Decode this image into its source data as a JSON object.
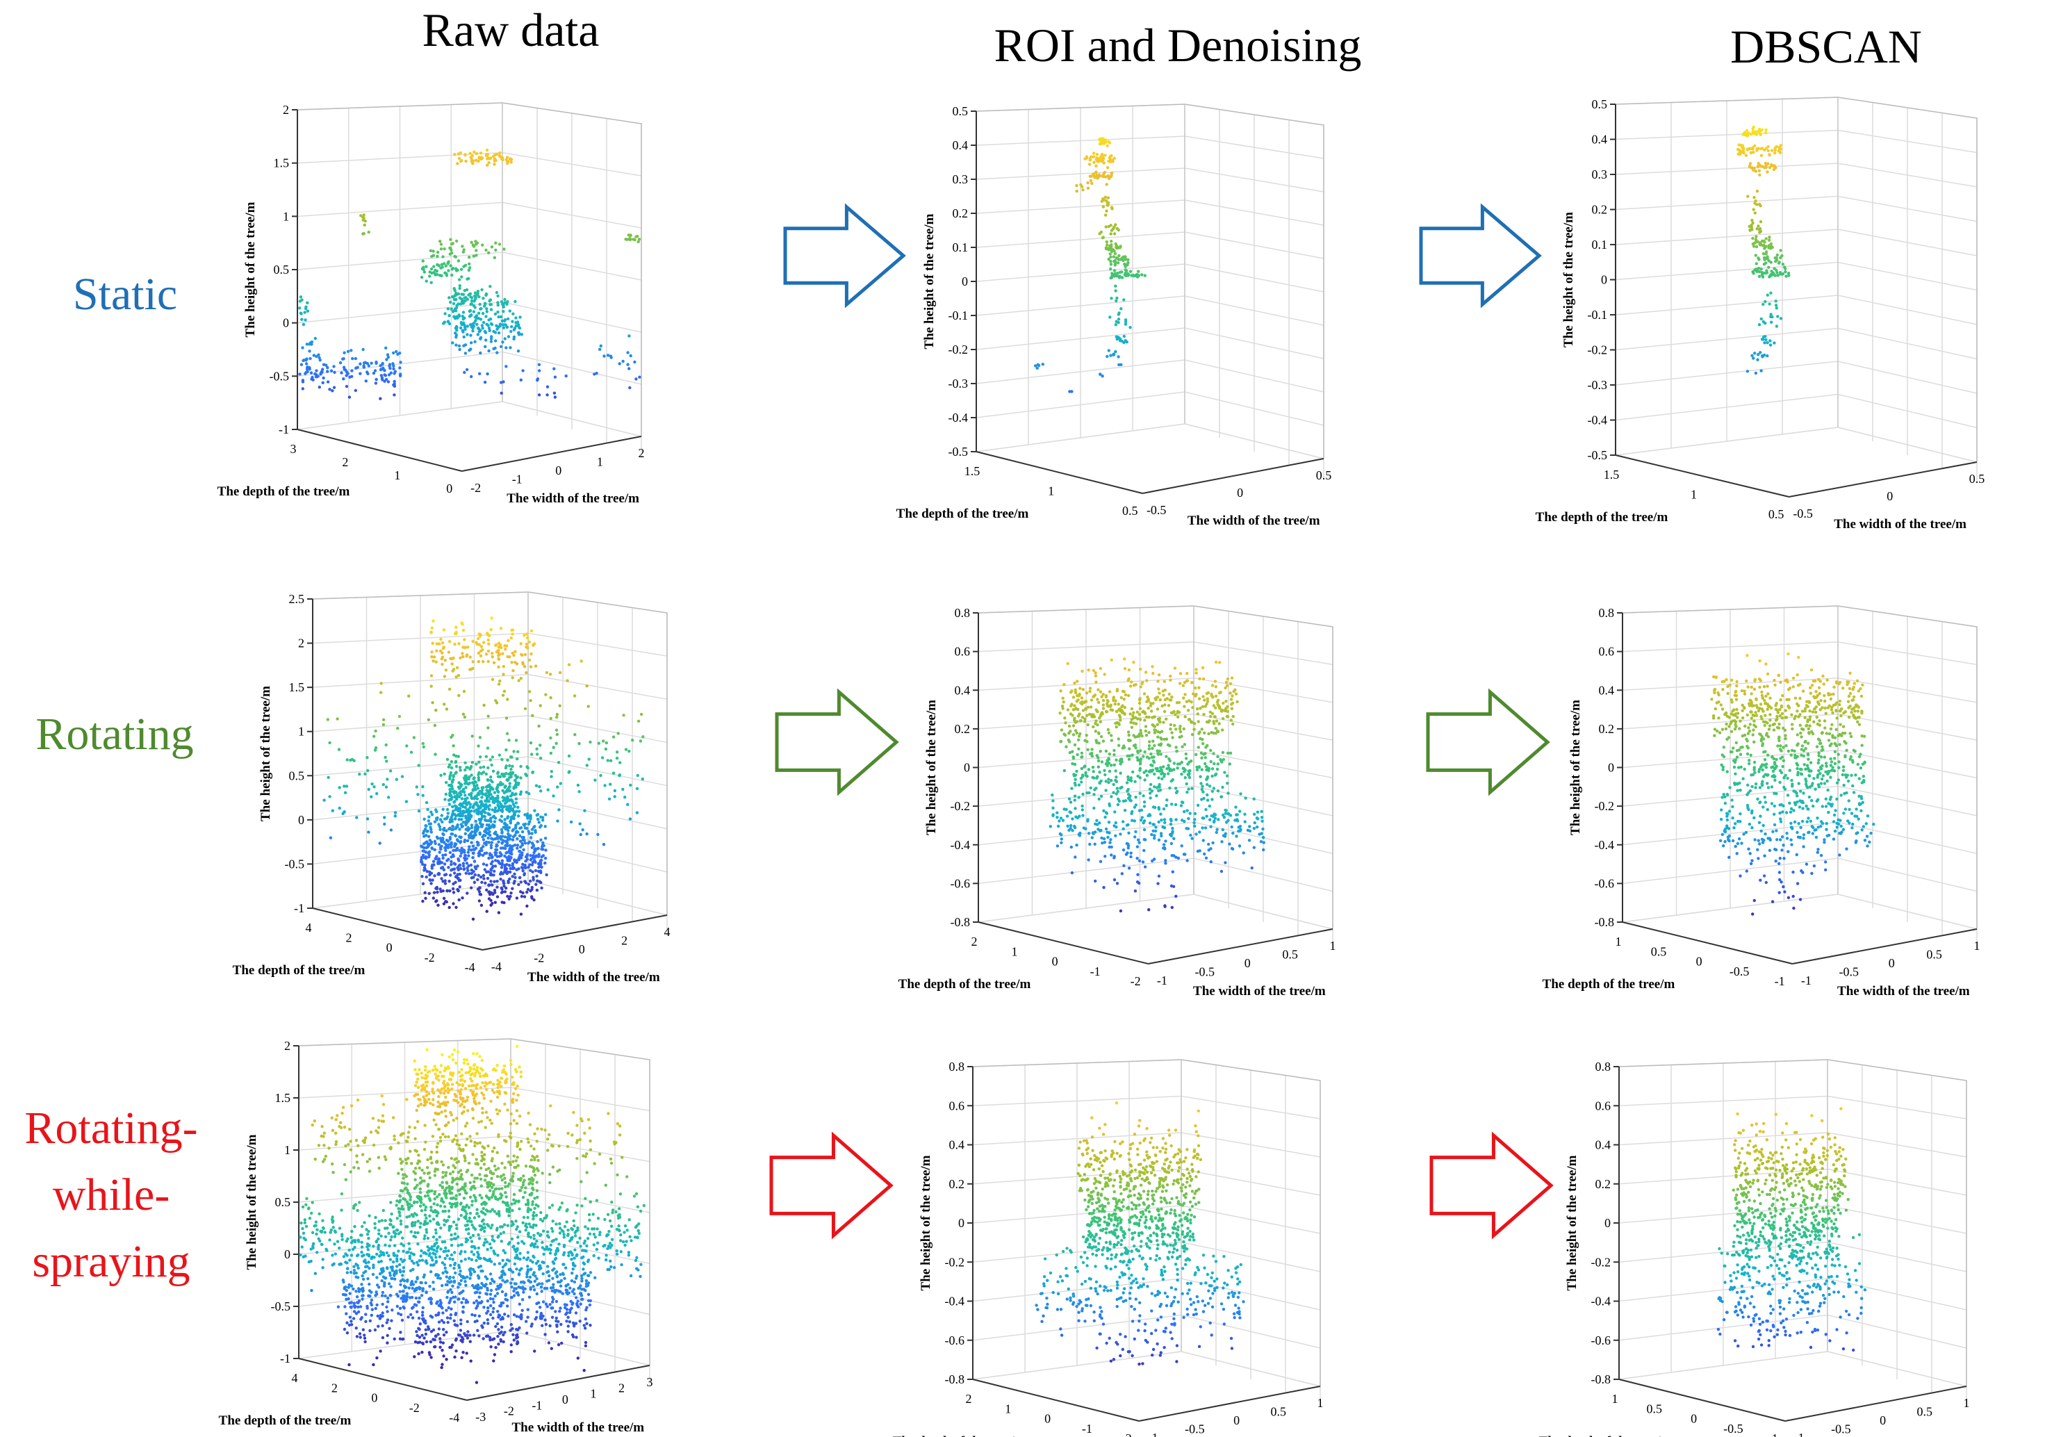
{
  "figure": {
    "column_titles": [
      "Raw data",
      "ROI and Denoising",
      "DBSCAN"
    ],
    "row_labels": [
      {
        "lines": [
          "Static"
        ],
        "color": "#1f6fb5"
      },
      {
        "lines": [
          "Rotating"
        ],
        "color": "#4f8a2e"
      },
      {
        "lines": [
          "Rotating-",
          "while-",
          "spraying"
        ],
        "color": "#e8141a"
      }
    ],
    "arrow_colors": [
      "#1f6fb5",
      "#4f8a2e",
      "#e8141a"
    ],
    "colormap": [
      "#3e26a8",
      "#2f6efa",
      "#13b3cb",
      "#35c37c",
      "#a9c02b",
      "#f4c02e",
      "#f9fb15"
    ]
  },
  "chart_data": [
    {
      "type": "scatter3d",
      "name": "static-raw",
      "row": 0,
      "col": 0,
      "zlabel": "The height of the tree/m",
      "xlabel": "The depth of the tree/m",
      "ylabel": "The width of the tree/m",
      "zlim": [
        -1,
        2
      ],
      "zticks": [
        "2",
        "1.5",
        "1",
        "0.5",
        "0",
        "-0.5",
        "-1"
      ],
      "depth_ticks": [
        "3",
        "2",
        "1",
        "0"
      ],
      "width_ticks": [
        "-2",
        "-1",
        "0",
        "1",
        "2"
      ],
      "point_groups": [
        {
          "z": 1.55,
          "zs": 0.03,
          "h": [
            -0.05,
            0.3
          ],
          "n": 60
        },
        {
          "z": 0.95,
          "zs": 0.05,
          "h": [
            -0.6,
            -0.55
          ],
          "n": 10
        },
        {
          "z": 0.8,
          "zs": 0.03,
          "h": [
            0.95,
            1.35
          ],
          "n": 60
        },
        {
          "z": 0.7,
          "zs": 0.05,
          "h": [
            -0.2,
            0.25
          ],
          "n": 40
        },
        {
          "z": 0.5,
          "zs": 0.05,
          "h": [
            -0.25,
            0.05
          ],
          "n": 60
        },
        {
          "z": 0.25,
          "zs": 0.05,
          "h": [
            -0.05,
            0.1
          ],
          "n": 40
        },
        {
          "z": 0.1,
          "zs": 0.12,
          "h": [
            -0.1,
            0.3
          ],
          "n": 120
        },
        {
          "z": -0.1,
          "zs": 0.1,
          "h": [
            -0.05,
            0.35
          ],
          "n": 90
        },
        {
          "z": 0.1,
          "zs": 0.08,
          "h": [
            -0.98,
            -0.9
          ],
          "n": 20
        },
        {
          "z": -0.3,
          "zs": 0.06,
          "h": [
            -0.92,
            -0.85
          ],
          "n": 10
        },
        {
          "z": -0.45,
          "zs": 0.1,
          "h": [
            -0.95,
            -0.35
          ],
          "n": 140
        },
        {
          "z": -0.55,
          "zs": 0.12,
          "h": [
            0.0,
            0.65
          ],
          "n": 25
        },
        {
          "z": 0.1,
          "zs": 0.06,
          "h": [
            1.05,
            1.4
          ],
          "n": 35
        },
        {
          "z": -0.35,
          "zs": 0.12,
          "h": [
            0.7,
            1.05
          ],
          "n": 20
        },
        {
          "z": 0.75,
          "zs": 0.04,
          "h": [
            1.35,
            1.55
          ],
          "n": 12
        }
      ]
    },
    {
      "type": "scatter3d",
      "name": "static-roi",
      "row": 0,
      "col": 1,
      "zlabel": "The height of the tree/m",
      "xlabel": "The depth of the tree/m",
      "ylabel": "The width of the tree/m",
      "zlim": [
        -0.5,
        0.5
      ],
      "zticks": [
        "0.5",
        "0.4",
        "0.3",
        "0.2",
        "0.1",
        "0",
        "-0.1",
        "-0.2",
        "-0.3",
        "-0.4",
        "-0.5"
      ],
      "depth_ticks": [
        "1.5",
        "1",
        "0.5"
      ],
      "width_ticks": [
        "-0.5",
        "0",
        "0.5"
      ],
      "point_groups": [
        {
          "z": 0.41,
          "zs": 0.006,
          "h": [
            -0.26,
            -0.2
          ],
          "n": 25
        },
        {
          "z": 0.36,
          "zs": 0.008,
          "h": [
            -0.33,
            -0.16
          ],
          "n": 45
        },
        {
          "z": 0.31,
          "zs": 0.008,
          "h": [
            -0.3,
            -0.18
          ],
          "n": 30
        },
        {
          "z": 0.28,
          "zs": 0.01,
          "h": [
            -0.4,
            -0.3
          ],
          "n": 8
        },
        {
          "z": 0.22,
          "zs": 0.015,
          "h": [
            -0.24,
            -0.18
          ],
          "n": 15
        },
        {
          "z": 0.15,
          "zs": 0.01,
          "h": [
            -0.25,
            -0.15
          ],
          "n": 15
        },
        {
          "z": 0.1,
          "zs": 0.01,
          "h": [
            -0.22,
            -0.12
          ],
          "n": 30
        },
        {
          "z": 0.06,
          "zs": 0.01,
          "h": [
            -0.2,
            -0.08
          ],
          "n": 30
        },
        {
          "z": 0.02,
          "zs": 0.006,
          "h": [
            -0.2,
            0.0
          ],
          "n": 40
        },
        {
          "z": -0.05,
          "zs": 0.02,
          "h": [
            -0.18,
            -0.12
          ],
          "n": 8
        },
        {
          "z": -0.11,
          "zs": 0.01,
          "h": [
            -0.18,
            -0.06
          ],
          "n": 10
        },
        {
          "z": -0.17,
          "zs": 0.01,
          "h": [
            -0.16,
            -0.1
          ],
          "n": 10
        },
        {
          "z": -0.22,
          "zs": 0.01,
          "h": [
            -0.2,
            -0.12
          ],
          "n": 10
        },
        {
          "z": -0.25,
          "zs": 0.005,
          "h": [
            -0.62,
            -0.58
          ],
          "n": 5
        },
        {
          "z": -0.32,
          "zs": 0.005,
          "h": [
            -0.42,
            -0.4
          ],
          "n": 2
        },
        {
          "z": -0.27,
          "zs": 0.005,
          "h": [
            -0.26,
            -0.22
          ],
          "n": 3
        }
      ]
    },
    {
      "type": "scatter3d",
      "name": "static-dbscan",
      "row": 0,
      "col": 2,
      "zlabel": "The height of the tree/m",
      "xlabel": "The depth of the tree/m",
      "ylabel": "The width of the tree/m",
      "zlim": [
        -0.5,
        0.5
      ],
      "zticks": [
        "0.5",
        "0.4",
        "0.3",
        "0.2",
        "0.1",
        "0",
        "-0.1",
        "-0.2",
        "-0.3",
        "-0.4",
        "-0.5"
      ],
      "depth_ticks": [
        "1.5",
        "1",
        "0.5"
      ],
      "width_ticks": [
        "-0.5",
        "0",
        "0.5"
      ],
      "point_groups": [
        {
          "z": 0.42,
          "zs": 0.006,
          "h": [
            -0.26,
            -0.12
          ],
          "n": 30
        },
        {
          "z": 0.37,
          "zs": 0.008,
          "h": [
            -0.28,
            -0.05
          ],
          "n": 50
        },
        {
          "z": 0.32,
          "zs": 0.008,
          "h": [
            -0.22,
            -0.08
          ],
          "n": 30
        },
        {
          "z": 0.22,
          "zs": 0.02,
          "h": [
            -0.23,
            -0.16
          ],
          "n": 10
        },
        {
          "z": 0.15,
          "zs": 0.01,
          "h": [
            -0.22,
            -0.13
          ],
          "n": 15
        },
        {
          "z": 0.1,
          "zs": 0.01,
          "h": [
            -0.2,
            -0.08
          ],
          "n": 30
        },
        {
          "z": 0.06,
          "zs": 0.01,
          "h": [
            -0.18,
            -0.04
          ],
          "n": 30
        },
        {
          "z": 0.02,
          "zs": 0.006,
          "h": [
            -0.2,
            0.0
          ],
          "n": 40
        },
        {
          "z": -0.07,
          "zs": 0.02,
          "h": [
            -0.14,
            -0.04
          ],
          "n": 10
        },
        {
          "z": -0.12,
          "zs": 0.01,
          "h": [
            -0.16,
            -0.04
          ],
          "n": 10
        },
        {
          "z": -0.17,
          "zs": 0.01,
          "h": [
            -0.16,
            -0.08
          ],
          "n": 10
        },
        {
          "z": -0.22,
          "zs": 0.01,
          "h": [
            -0.2,
            -0.12
          ],
          "n": 10
        },
        {
          "z": -0.26,
          "zs": 0.005,
          "h": [
            -0.24,
            -0.14
          ],
          "n": 3
        }
      ]
    },
    {
      "type": "scatter3d",
      "name": "rotating-raw",
      "row": 1,
      "col": 0,
      "zlabel": "The height of the tree/m",
      "xlabel": "The depth of the tree/m",
      "ylabel": "The width of the tree/m",
      "zlim": [
        -1,
        2.5
      ],
      "zticks": [
        "2.5",
        "2",
        "1.5",
        "1",
        "0.5",
        "0",
        "-0.5",
        "-1"
      ],
      "depth_ticks": [
        "4",
        "2",
        "0",
        "-2",
        "-4"
      ],
      "width_ticks": [
        "-4",
        "-2",
        "0",
        "2",
        "4"
      ],
      "point_groups": [
        {
          "z": 1.9,
          "zs": 0.15,
          "h": [
            -0.3,
            0.3
          ],
          "n": 150
        },
        {
          "z": 1.3,
          "zs": 0.3,
          "h": [
            -0.6,
            0.6
          ],
          "n": 60
        },
        {
          "z": 0.5,
          "zs": 0.35,
          "h": [
            -0.9,
            0.9
          ],
          "n": 200
        },
        {
          "z": 0.2,
          "zs": 0.25,
          "h": [
            -0.2,
            0.2
          ],
          "n": 500
        },
        {
          "z": -0.35,
          "zs": 0.25,
          "h": [
            -0.35,
            0.35
          ],
          "n": 700
        },
        {
          "z": -0.75,
          "zs": 0.12,
          "h": [
            -0.3,
            0.3
          ],
          "n": 80
        }
      ]
    },
    {
      "type": "scatter3d",
      "name": "rotating-roi",
      "row": 1,
      "col": 1,
      "zlabel": "The height of the tree/m",
      "xlabel": "The depth of the tree/m",
      "ylabel": "The width of the tree/m",
      "zlim": [
        -0.8,
        0.8
      ],
      "zticks": [
        "0.8",
        "0.6",
        "0.4",
        "0.2",
        "0",
        "-0.2",
        "-0.4",
        "-0.6",
        "-0.8"
      ],
      "depth_ticks": [
        "2",
        "1",
        "0",
        "-1",
        "-2"
      ],
      "width_ticks": [
        "-1",
        "-0.5",
        "0",
        "0.5",
        "1"
      ],
      "point_groups": [
        {
          "z": 0.3,
          "zs": 0.1,
          "h": [
            -0.5,
            0.5
          ],
          "n": 450
        },
        {
          "z": 0.0,
          "zs": 0.1,
          "h": [
            -0.45,
            0.45
          ],
          "n": 350
        },
        {
          "z": -0.3,
          "zs": 0.1,
          "h": [
            -0.55,
            0.65
          ],
          "n": 300
        },
        {
          "z": -0.55,
          "zs": 0.1,
          "h": [
            -0.3,
            0.2
          ],
          "n": 40
        }
      ]
    },
    {
      "type": "scatter3d",
      "name": "rotating-dbscan",
      "row": 1,
      "col": 2,
      "zlabel": "The height of the tree/m",
      "xlabel": "The depth of the tree/m",
      "ylabel": "The width of the tree/m",
      "zlim": [
        -0.8,
        0.8
      ],
      "zticks": [
        "0.8",
        "0.6",
        "0.4",
        "0.2",
        "0",
        "-0.2",
        "-0.4",
        "-0.6",
        "-0.8"
      ],
      "depth_ticks": [
        "1",
        "0.5",
        "0",
        "-0.5",
        "-1"
      ],
      "width_ticks": [
        "-1",
        "-0.5",
        "0",
        "0.5",
        "1"
      ],
      "point_groups": [
        {
          "z": 0.3,
          "zs": 0.1,
          "h": [
            -0.45,
            0.4
          ],
          "n": 400
        },
        {
          "z": 0.0,
          "zs": 0.1,
          "h": [
            -0.4,
            0.4
          ],
          "n": 300
        },
        {
          "z": -0.3,
          "zs": 0.1,
          "h": [
            -0.4,
            0.45
          ],
          "n": 220
        },
        {
          "z": -0.55,
          "zs": 0.08,
          "h": [
            -0.25,
            0.15
          ],
          "n": 25
        }
      ]
    },
    {
      "type": "scatter3d",
      "name": "spraying-raw",
      "row": 2,
      "col": 0,
      "zlabel": "The height of the tree/m",
      "xlabel": "The depth of the tree/m",
      "ylabel": "The width of the tree/m",
      "zlim": [
        -1,
        2
      ],
      "zticks": [
        "2",
        "1.5",
        "1",
        "0.5",
        "0",
        "-0.5",
        "-1"
      ],
      "depth_ticks": [
        "4",
        "2",
        "0",
        "-2",
        "-4"
      ],
      "width_ticks": [
        "-3",
        "-2",
        "-1",
        "0",
        "1",
        "2",
        "3"
      ],
      "point_groups": [
        {
          "z": 1.6,
          "zs": 0.15,
          "h": [
            -0.3,
            0.3
          ],
          "n": 300
        },
        {
          "z": 1.05,
          "zs": 0.2,
          "h": [
            -0.9,
            0.9
          ],
          "n": 250
        },
        {
          "z": 0.6,
          "zs": 0.2,
          "h": [
            -0.4,
            0.4
          ],
          "n": 450
        },
        {
          "z": 0.15,
          "zs": 0.2,
          "h": [
            -1.0,
            1.0
          ],
          "n": 600
        },
        {
          "z": -0.35,
          "zs": 0.25,
          "h": [
            -0.7,
            0.7
          ],
          "n": 900
        },
        {
          "z": -0.8,
          "zs": 0.12,
          "h": [
            -0.3,
            0.3
          ],
          "n": 100
        }
      ]
    },
    {
      "type": "scatter3d",
      "name": "spraying-roi",
      "row": 2,
      "col": 1,
      "zlabel": "The height of the tree/m",
      "xlabel": "The depth of the tree/m",
      "ylabel": "The width of the tree/m",
      "zlim": [
        -0.8,
        0.8
      ],
      "zticks": [
        "0.8",
        "0.6",
        "0.4",
        "0.2",
        "0",
        "-0.2",
        "-0.4",
        "-0.6",
        "-0.8"
      ],
      "depth_ticks": [
        "2",
        "1",
        "0",
        "-1",
        "-2"
      ],
      "width_ticks": [
        "-1",
        "-0.5",
        "0",
        "0.5",
        "1"
      ],
      "point_groups": [
        {
          "z": 0.25,
          "zs": 0.12,
          "h": [
            -0.35,
            0.35
          ],
          "n": 350
        },
        {
          "z": -0.05,
          "zs": 0.1,
          "h": [
            -0.3,
            0.3
          ],
          "n": 350
        },
        {
          "z": -0.35,
          "zs": 0.12,
          "h": [
            -0.6,
            0.6
          ],
          "n": 250
        },
        {
          "z": -0.6,
          "zs": 0.08,
          "h": [
            -0.25,
            0.25
          ],
          "n": 40
        }
      ]
    },
    {
      "type": "scatter3d",
      "name": "spraying-dbscan",
      "row": 2,
      "col": 2,
      "zlabel": "The height of the tree/m",
      "xlabel": "The depth of the tree/m",
      "ylabel": "The width of the tree/m",
      "zlim": [
        -0.8,
        0.8
      ],
      "zticks": [
        "0.8",
        "0.6",
        "0.4",
        "0.2",
        "0",
        "-0.2",
        "-0.4",
        "-0.6",
        "-0.8"
      ],
      "depth_ticks": [
        "1",
        "0.5",
        "0",
        "-0.5",
        "-1"
      ],
      "width_ticks": [
        "-1",
        "-0.5",
        "0",
        "0.5",
        "1"
      ],
      "point_groups": [
        {
          "z": 0.25,
          "zs": 0.12,
          "h": [
            -0.3,
            0.35
          ],
          "n": 320
        },
        {
          "z": -0.05,
          "zs": 0.1,
          "h": [
            -0.3,
            0.3
          ],
          "n": 320
        },
        {
          "z": -0.35,
          "zs": 0.12,
          "h": [
            -0.4,
            0.45
          ],
          "n": 200
        },
        {
          "z": -0.55,
          "zs": 0.06,
          "h": [
            -0.2,
            0.15
          ],
          "n": 25
        }
      ]
    }
  ]
}
